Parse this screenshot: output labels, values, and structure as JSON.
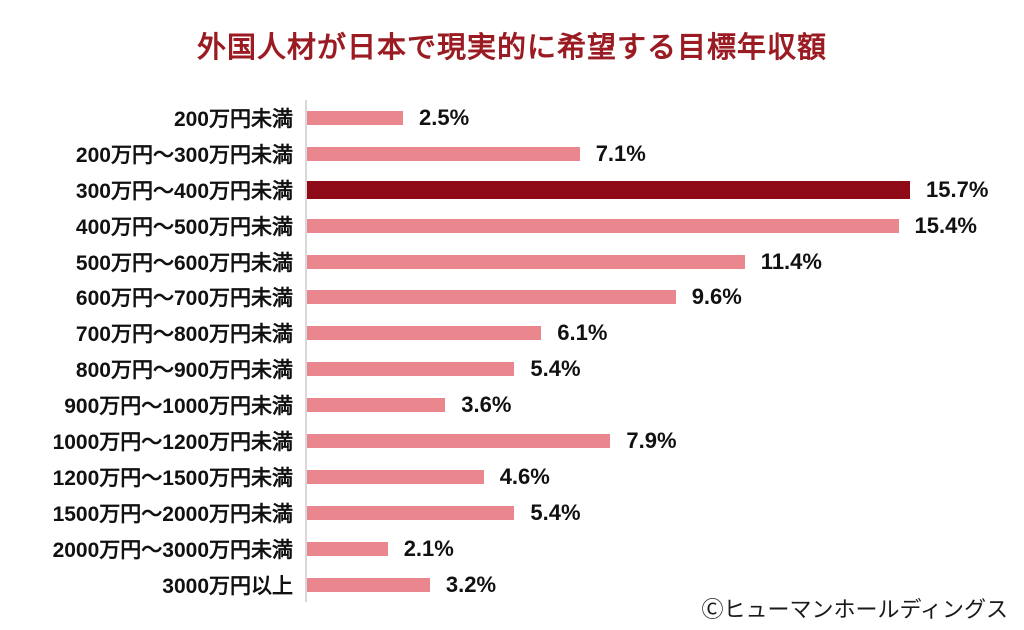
{
  "chart_data": {
    "type": "bar",
    "orientation": "horizontal",
    "title": "外国人材が日本で現実的に希望する目標年収額",
    "categories": [
      "200万円未満",
      "200万円～300万円未満",
      "300万円～400万円未満",
      "400万円～500万円未満",
      "500万円～600万円未満",
      "600万円～700万円未満",
      "700万円～800万円未満",
      "800万円～900万円未満",
      "900万円～1000万円未満",
      "1000万円～1200万円未満",
      "1200万円～1500万円未満",
      "1500万円～2000万円未満",
      "2000万円～3000万円未満",
      "3000万円以上"
    ],
    "values": [
      2.5,
      7.1,
      15.7,
      15.4,
      11.4,
      9.6,
      6.1,
      5.4,
      3.6,
      7.9,
      4.6,
      5.4,
      2.1,
      3.2
    ],
    "value_labels": [
      "2.5%",
      "7.1%",
      "15.7%",
      "15.4%",
      "11.4%",
      "9.6%",
      "6.1%",
      "5.4%",
      "3.6%",
      "7.9%",
      "4.6%",
      "5.4%",
      "2.1%",
      "3.2%"
    ],
    "highlight_index": 2,
    "highlight_category": "300万円～400万円未満",
    "xlim": [
      0,
      16.5
    ],
    "grid": false,
    "legend": false,
    "value_label_position": "end-of-bar",
    "colors": {
      "bar": "#E9868E",
      "highlight": "#8E0A16",
      "title": "#9B1B23",
      "axis_line": "#D8D8D8",
      "label_text": "#111111"
    }
  },
  "footer": {
    "credit": "Ⓒヒューマンホールディングス"
  }
}
